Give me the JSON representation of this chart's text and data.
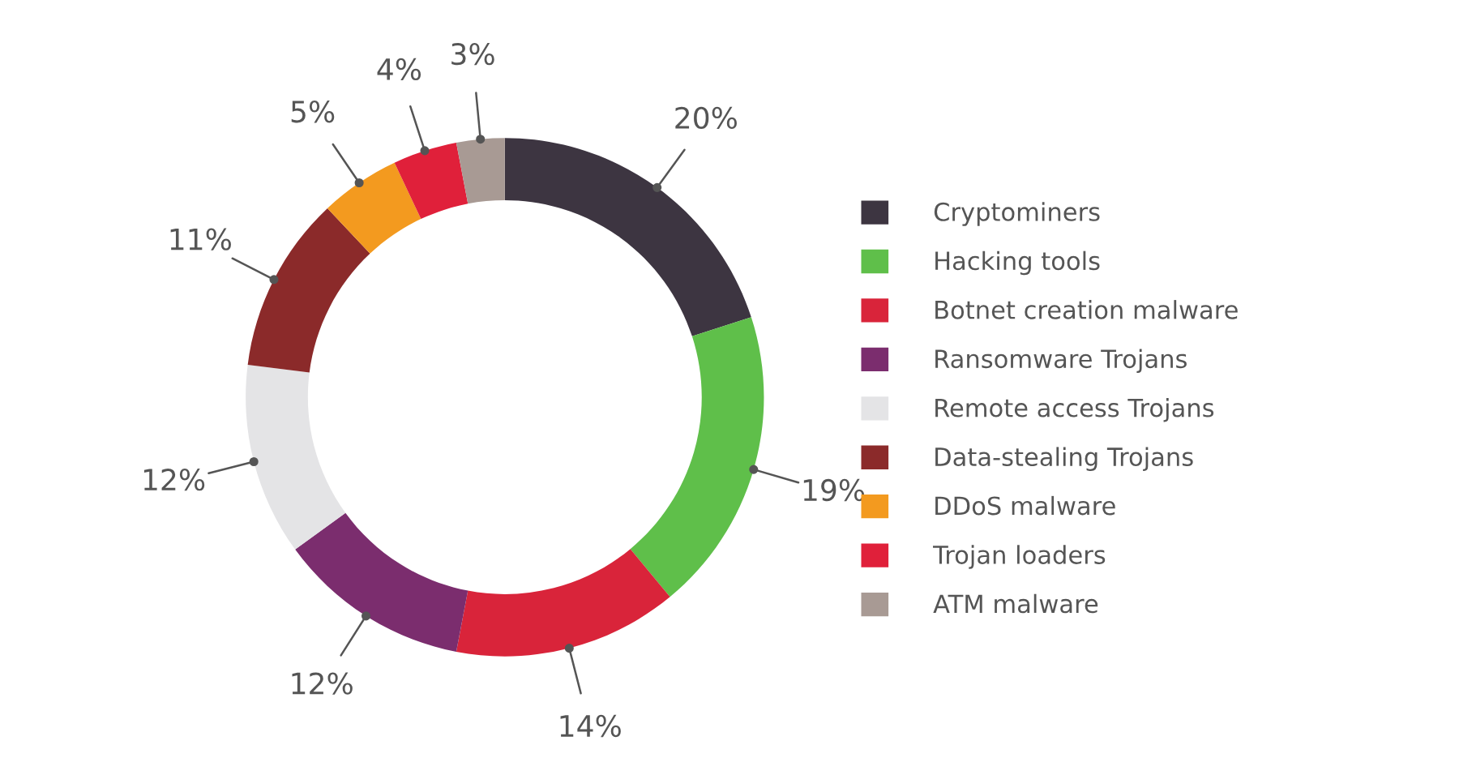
{
  "chart_data": {
    "type": "donut",
    "categories": [
      "Cryptominers",
      "Hacking tools",
      "Botnet creation malware",
      "Ransomware Trojans",
      "Remote access Trojans",
      "Data-stealing Trojans",
      "DDoS malware",
      "Trojan loaders",
      "ATM malware"
    ],
    "values": [
      20,
      19,
      14,
      12,
      12,
      11,
      5,
      4,
      3
    ],
    "value_labels": [
      "20%",
      "19%",
      "14%",
      "12%",
      "12%",
      "11%",
      "5%",
      "4%",
      "3%"
    ],
    "colors": [
      "#3d3541",
      "#5fbf4a",
      "#d9243a",
      "#7b2d6e",
      "#e4e4e6",
      "#8b2a2a",
      "#f39a1f",
      "#e0203a",
      "#a89a94"
    ],
    "legend": "right"
  }
}
